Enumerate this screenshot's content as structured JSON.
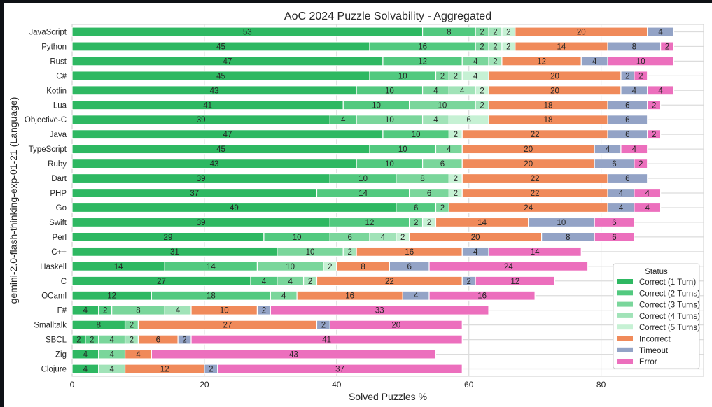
{
  "chart_data": {
    "type": "bar",
    "orientation": "horizontal",
    "stacked": true,
    "title": "AoC 2024 Puzzle Solvability - Aggregated",
    "xlabel": "Solved Puzzles %",
    "ylabel": "gemini-2.0-flash-thinking-exp-01-21 (Language)",
    "xlim": [
      0,
      95.5
    ],
    "xticks": [
      0,
      20,
      40,
      60,
      80
    ],
    "grid": true,
    "legend": {
      "title": "Status",
      "position": "bottom-right"
    },
    "categories": [
      "JavaScript",
      "Python",
      "Rust",
      "C#",
      "Kotlin",
      "Lua",
      "Objective-C",
      "Java",
      "TypeScript",
      "Ruby",
      "Dart",
      "PHP",
      "Go",
      "Swift",
      "Perl",
      "C++",
      "Haskell",
      "C",
      "OCaml",
      "F#",
      "Smalltalk",
      "SBCL",
      "Zig",
      "Clojure"
    ],
    "series": [
      {
        "name": "Correct (1 Turn)",
        "color": "#2eb862",
        "values": [
          53,
          45,
          47,
          45,
          43,
          41,
          39,
          47,
          45,
          43,
          39,
          37,
          49,
          39,
          29,
          31,
          14,
          27,
          12,
          4,
          8,
          2,
          4,
          4
        ]
      },
      {
        "name": "Correct (2 Turns)",
        "color": "#52c97f",
        "values": [
          8,
          16,
          12,
          10,
          10,
          10,
          4,
          10,
          10,
          10,
          10,
          14,
          6,
          12,
          10,
          0,
          14,
          4,
          18,
          2,
          0,
          2,
          0,
          0
        ]
      },
      {
        "name": "Correct (3 Turns)",
        "color": "#7ad69b",
        "values": [
          2,
          2,
          4,
          2,
          4,
          10,
          10,
          0,
          4,
          6,
          8,
          6,
          2,
          2,
          6,
          10,
          10,
          4,
          4,
          8,
          2,
          4,
          4,
          0
        ]
      },
      {
        "name": "Correct (4 Turns)",
        "color": "#a1e3b8",
        "values": [
          2,
          2,
          2,
          2,
          4,
          2,
          4,
          0,
          0,
          0,
          0,
          0,
          0,
          0,
          4,
          2,
          0,
          2,
          0,
          4,
          0,
          2,
          0,
          4
        ]
      },
      {
        "name": "Correct (5 Turns)",
        "color": "#c6f1d4",
        "values": [
          2,
          2,
          0,
          4,
          2,
          0,
          6,
          2,
          0,
          0,
          2,
          2,
          0,
          2,
          2,
          0,
          2,
          0,
          0,
          0,
          0,
          0,
          0,
          0
        ]
      },
      {
        "name": "Incorrect",
        "color": "#f08a5a",
        "values": [
          20,
          14,
          12,
          20,
          20,
          18,
          18,
          22,
          20,
          20,
          22,
          22,
          24,
          14,
          20,
          16,
          8,
          22,
          16,
          10,
          27,
          6,
          4,
          12
        ]
      },
      {
        "name": "Timeout",
        "color": "#93a3c6",
        "values": [
          4,
          8,
          4,
          2,
          4,
          6,
          6,
          6,
          4,
          6,
          6,
          4,
          4,
          10,
          8,
          4,
          6,
          2,
          4,
          2,
          2,
          2,
          0,
          2
        ]
      },
      {
        "name": "Error",
        "color": "#ec6fbd",
        "values": [
          0,
          2,
          10,
          2,
          4,
          2,
          0,
          2,
          4,
          2,
          0,
          4,
          4,
          6,
          6,
          14,
          24,
          12,
          16,
          33,
          20,
          41,
          43,
          37
        ]
      }
    ]
  }
}
